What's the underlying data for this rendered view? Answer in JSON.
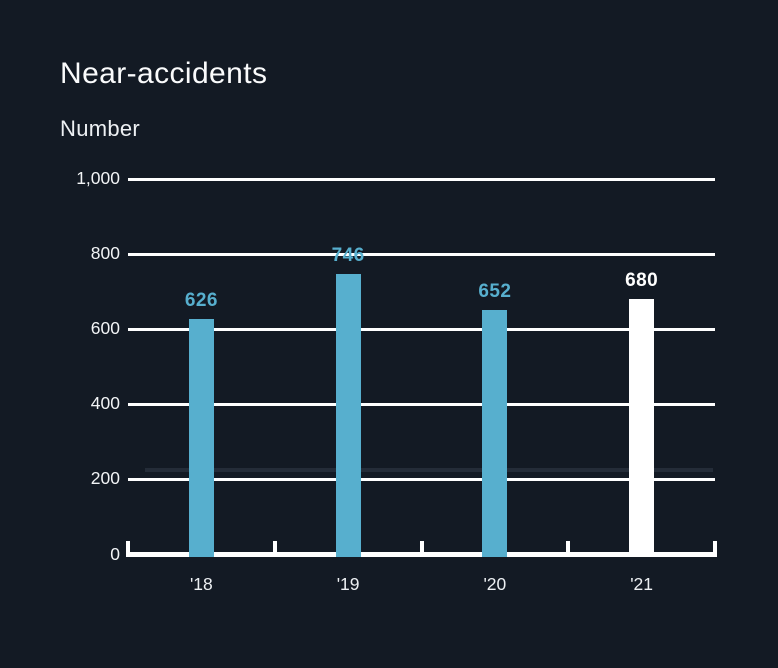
{
  "title": "Near-accidents",
  "subtitle": "Number",
  "colors": {
    "background": "#131A24",
    "bar_blue": "#57AFCE",
    "bar_white": "#FFFFFF",
    "grid": "#FFFFFF",
    "text": "#F2F4F6",
    "reference_line": "#242C38"
  },
  "chart_data": {
    "type": "bar",
    "title": "Near-accidents",
    "ylabel": "Number",
    "categories": [
      "'18",
      "'19",
      "'20",
      "'21"
    ],
    "values": [
      626,
      746,
      652,
      680
    ],
    "bar_colors": [
      "#57AFCE",
      "#57AFCE",
      "#57AFCE",
      "#FFFFFF"
    ],
    "label_colors": [
      "#57AFCE",
      "#57AFCE",
      "#57AFCE",
      "#FFFFFF"
    ],
    "ylim": [
      0,
      1000
    ],
    "yticks": [
      0,
      200,
      400,
      600,
      800,
      1000
    ],
    "ytick_labels": [
      "0",
      "200",
      "400",
      "600",
      "800",
      "1,000"
    ],
    "grid": true,
    "legend": false,
    "reference_line": {
      "value": 225
    }
  }
}
